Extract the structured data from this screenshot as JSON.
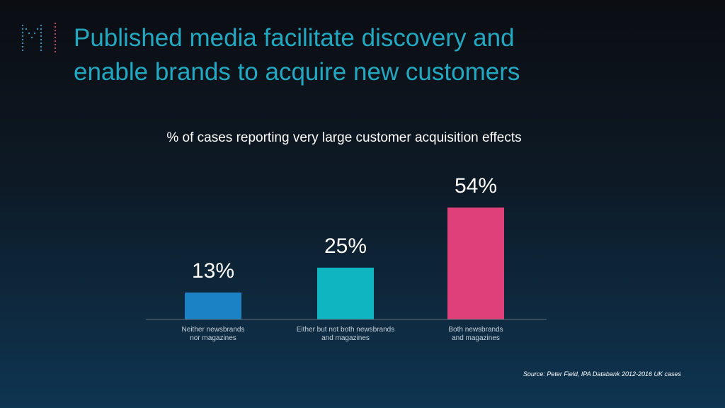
{
  "header": {
    "title_line1": "Published media facilitate discovery and",
    "title_line2": "enable brands to acquire new customers",
    "logo_icon": "dotted-m-logo-icon"
  },
  "chart_data": {
    "type": "bar",
    "title": "% of cases reporting very large customer acquisition effects",
    "categories": [
      [
        "Neither newsbrands",
        "nor magazines"
      ],
      [
        "Either but not both newsbrands",
        "and magazines"
      ],
      [
        "Both newsbrands",
        "and magazines"
      ]
    ],
    "values": [
      13,
      25,
      54
    ],
    "value_labels": [
      "13%",
      "25%",
      "54%"
    ],
    "colors": [
      "#1c82c6",
      "#0fb5c0",
      "#e0407a"
    ],
    "ylim": [
      0,
      54
    ],
    "grid": false,
    "legend": "none"
  },
  "footer": {
    "source": "Source: Peter Field, IPA Databank 2012-2016 UK cases"
  }
}
